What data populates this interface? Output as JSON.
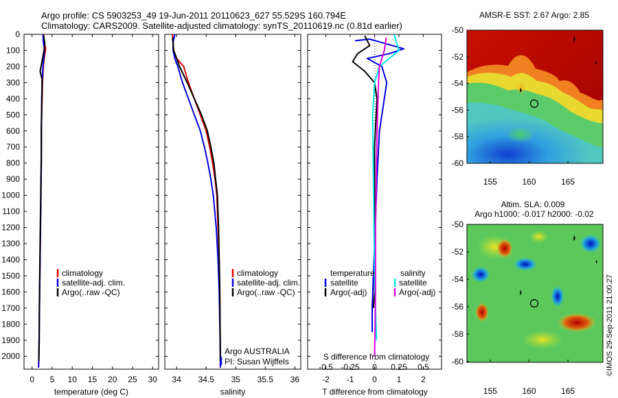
{
  "header": {
    "line1": "Argo profile: CS 5903253_49 19-Jun-2011 20110623_627 55.529S 160.794E",
    "line2": "Climatology: CARS2009. Satellite-adjusted climatology: synTS_20110619.nc (0.81d earlier)"
  },
  "colors": {
    "climatology": "#e00000",
    "satellite": "#0000e0",
    "argo": "#000000",
    "satellite_salinity_diff": "#00e8e8",
    "argo_salinity_diff": "#e000e0"
  },
  "depth_ticks": [
    "0",
    "100",
    "200",
    "300",
    "400",
    "500",
    "600",
    "700",
    "800",
    "900",
    "1000",
    "1100",
    "1200",
    "1300",
    "1400",
    "1500",
    "1600",
    "1700",
    "1800",
    "1900",
    "2000"
  ],
  "panel_temperature": {
    "xlabel": "temperature (deg C)",
    "x_ticks": [
      "0",
      "5",
      "10",
      "15",
      "20",
      "25",
      "30"
    ],
    "legend": [
      "climatology",
      "satellite-adj. clim.",
      "Argo(..raw -QC)"
    ]
  },
  "panel_salinity": {
    "xlabel": "salinity",
    "x_ticks": [
      "34",
      "34.5",
      "35",
      "35.5",
      "36"
    ],
    "legend": [
      "climatology",
      "satellite-adj. clim.",
      "Argo(..raw -QC)"
    ],
    "credit_line1": "Argo AUSTRALIA",
    "credit_line2": "PI: Susan Wijffels"
  },
  "panel_difference": {
    "top_ticks": [
      "-0.5",
      "-0.25",
      "0",
      "0.25",
      "0.5"
    ],
    "bottom_ticks": [
      "-2",
      "-1",
      "0",
      "1",
      "2"
    ],
    "top_label": "S difference from climatology",
    "xlabel": "T difference from climatology",
    "legend_temperature_title": "temperature",
    "legend_salinity_title": "salinity",
    "legend_temperature": [
      "satellite",
      "Argo(-adj)"
    ],
    "legend_salinity": [
      "satellite",
      "Argo(-adj)"
    ]
  },
  "map_sst": {
    "title": "AMSR-E SST: 2.67  Argo: 2.85",
    "lat_ticks": [
      "-50",
      "-52",
      "-54",
      "-56",
      "-58",
      "-60"
    ],
    "lon_ticks": [
      "155",
      "160",
      "165"
    ]
  },
  "map_sla": {
    "title_line1": "Altim. SLA: 0.009",
    "title_line2": "Argo h1000: -0.017 h2000: -0.02",
    "lat_ticks": [
      "-50",
      "-52",
      "-54",
      "-56",
      "-58",
      "-60"
    ],
    "lon_ticks": [
      "155",
      "160",
      "165"
    ]
  },
  "footer_credit": "©IMOS 29-Sep-2011 21:00:27",
  "chart_data": [
    {
      "type": "line",
      "panel": "temperature",
      "xlabel": "temperature (deg C)",
      "ylabel": "",
      "xlim": [
        -2,
        31.5
      ],
      "ylim": [
        2080,
        0
      ],
      "depth_axis": "inverted",
      "series": [
        {
          "name": "climatology",
          "color": "#e00000",
          "points": [
            [
              2.9,
              0
            ],
            [
              3.0,
              50
            ],
            [
              3.4,
              90
            ],
            [
              3.0,
              150
            ],
            [
              2.8,
              200
            ],
            [
              2.7,
              250
            ],
            [
              2.6,
              300
            ],
            [
              2.5,
              400
            ],
            [
              2.4,
              500
            ],
            [
              2.3,
              600
            ],
            [
              2.3,
              800
            ],
            [
              2.2,
              1000
            ],
            [
              2.1,
              1200
            ],
            [
              2.0,
              1400
            ],
            [
              1.9,
              1600
            ],
            [
              1.8,
              1800
            ],
            [
              1.7,
              2000
            ],
            [
              1.6,
              2070
            ]
          ]
        },
        {
          "name": "satellite-adj. clim.",
          "color": "#0000e0",
          "points": [
            [
              2.7,
              0
            ],
            [
              2.8,
              50
            ],
            [
              3.1,
              90
            ],
            [
              2.9,
              150
            ],
            [
              2.7,
              200
            ],
            [
              2.6,
              250
            ],
            [
              2.5,
              300
            ],
            [
              2.4,
              400
            ],
            [
              2.4,
              500
            ],
            [
              2.3,
              600
            ],
            [
              2.3,
              800
            ],
            [
              2.2,
              1000
            ],
            [
              2.1,
              1200
            ],
            [
              2.0,
              1400
            ],
            [
              1.9,
              1600
            ],
            [
              1.8,
              1800
            ],
            [
              1.7,
              2000
            ],
            [
              1.6,
              2070
            ]
          ]
        },
        {
          "name": "Argo(..raw -QC)",
          "color": "#000000",
          "points": [
            [
              2.9,
              10
            ],
            [
              3.2,
              60
            ],
            [
              2.9,
              110
            ],
            [
              2.4,
              180
            ],
            [
              2.0,
              230
            ],
            [
              2.5,
              280
            ],
            [
              2.5,
              350
            ],
            [
              2.4,
              450
            ],
            [
              2.3,
              550
            ],
            [
              2.3,
              700
            ],
            [
              2.2,
              900
            ],
            [
              2.1,
              1100
            ],
            [
              2.0,
              1300
            ],
            [
              1.9,
              1500
            ],
            [
              1.8,
              1700
            ],
            [
              1.8,
              1900
            ],
            [
              1.7,
              2030
            ]
          ]
        }
      ]
    },
    {
      "type": "line",
      "panel": "salinity",
      "xlabel": "salinity",
      "ylabel": "",
      "xlim": [
        33.8,
        36.1
      ],
      "ylim": [
        2080,
        0
      ],
      "depth_axis": "inverted",
      "series": [
        {
          "name": "climatology",
          "color": "#e00000",
          "points": [
            [
              33.93,
              0
            ],
            [
              33.94,
              50
            ],
            [
              33.95,
              100
            ],
            [
              34.0,
              150
            ],
            [
              34.12,
              200
            ],
            [
              34.2,
              300
            ],
            [
              34.3,
              400
            ],
            [
              34.4,
              500
            ],
            [
              34.5,
              600
            ],
            [
              34.56,
              700
            ],
            [
              34.61,
              800
            ],
            [
              34.65,
              900
            ],
            [
              34.68,
              1000
            ],
            [
              34.7,
              1200
            ],
            [
              34.72,
              1400
            ],
            [
              34.73,
              1600
            ],
            [
              34.735,
              1800
            ],
            [
              34.74,
              2000
            ],
            [
              34.74,
              2070
            ]
          ]
        },
        {
          "name": "satellite-adj. clim.",
          "color": "#0000e0",
          "points": [
            [
              33.97,
              0
            ],
            [
              33.94,
              50
            ],
            [
              33.94,
              100
            ],
            [
              33.97,
              150
            ],
            [
              34.02,
              200
            ],
            [
              34.1,
              300
            ],
            [
              34.2,
              400
            ],
            [
              34.3,
              500
            ],
            [
              34.4,
              600
            ],
            [
              34.47,
              700
            ],
            [
              34.53,
              800
            ],
            [
              34.58,
              900
            ],
            [
              34.62,
              1000
            ],
            [
              34.67,
              1200
            ],
            [
              34.7,
              1400
            ],
            [
              34.72,
              1600
            ],
            [
              34.73,
              1800
            ],
            [
              34.74,
              2000
            ],
            [
              34.74,
              2070
            ]
          ]
        },
        {
          "name": "Argo(..raw -QC)",
          "color": "#000000",
          "points": [
            [
              33.93,
              20
            ],
            [
              33.95,
              100
            ],
            [
              34.05,
              200
            ],
            [
              34.18,
              300
            ],
            [
              34.3,
              400
            ],
            [
              34.42,
              500
            ],
            [
              34.52,
              600
            ],
            [
              34.58,
              700
            ],
            [
              34.63,
              800
            ],
            [
              34.66,
              900
            ],
            [
              34.69,
              1000
            ],
            [
              34.71,
              1200
            ],
            [
              34.72,
              1400
            ],
            [
              34.73,
              1600
            ],
            [
              34.735,
              1800
            ],
            [
              34.74,
              2030
            ]
          ]
        }
      ]
    },
    {
      "type": "line",
      "panel": "difference",
      "xlabel": "T difference from climatology",
      "top_label": "S difference from climatology",
      "xlim_T": [
        -2.75,
        2.75
      ],
      "xlim_S": [
        -0.6875,
        0.6875
      ],
      "ylim": [
        2080,
        0
      ],
      "depth_axis": "inverted",
      "series": [
        {
          "name": "temperature satellite",
          "color": "#0000e0",
          "points": [
            [
              -0.8,
              40
            ],
            [
              -0.2,
              30
            ],
            [
              0.5,
              60
            ],
            [
              1.2,
              90
            ],
            [
              0.6,
              120
            ],
            [
              -0.3,
              150
            ],
            [
              0.3,
              200
            ],
            [
              0.5,
              300
            ],
            [
              0.4,
              400
            ],
            [
              0.2,
              600
            ],
            [
              0.1,
              900
            ],
            [
              0.0,
              1300
            ],
            [
              -0.1,
              1700
            ],
            [
              -0.1,
              1850
            ]
          ]
        },
        {
          "name": "temperature Argo(-adj)",
          "color": "#000000",
          "points": [
            [
              -0.4,
              10
            ],
            [
              -0.2,
              70
            ],
            [
              -0.7,
              120
            ],
            [
              -0.9,
              170
            ],
            [
              -0.4,
              230
            ],
            [
              0.0,
              300
            ],
            [
              0.1,
              400
            ],
            [
              0.0,
              700
            ],
            [
              0.0,
              1200
            ],
            [
              0.0,
              1600
            ],
            [
              -0.05,
              1700
            ]
          ]
        },
        {
          "name": "salinity satellite",
          "color": "#00e8e8",
          "points": [
            [
              0.2,
              0
            ],
            [
              0.25,
              100
            ],
            [
              0.05,
              200
            ],
            [
              0.0,
              300
            ],
            [
              -0.02,
              500
            ],
            [
              -0.01,
              1000
            ],
            [
              0.0,
              1500
            ],
            [
              0.02,
              1900
            ]
          ]
        },
        {
          "name": "salinity Argo(-adj)",
          "color": "#e000e0",
          "points": [
            [
              0.12,
              20
            ],
            [
              0.1,
              100
            ],
            [
              0.05,
              200
            ],
            [
              0.04,
              300
            ],
            [
              0.03,
              500
            ],
            [
              0.02,
              800
            ],
            [
              0.01,
              1200
            ],
            [
              0.01,
              1600
            ],
            [
              0.0,
              2000
            ]
          ]
        }
      ]
    }
  ]
}
